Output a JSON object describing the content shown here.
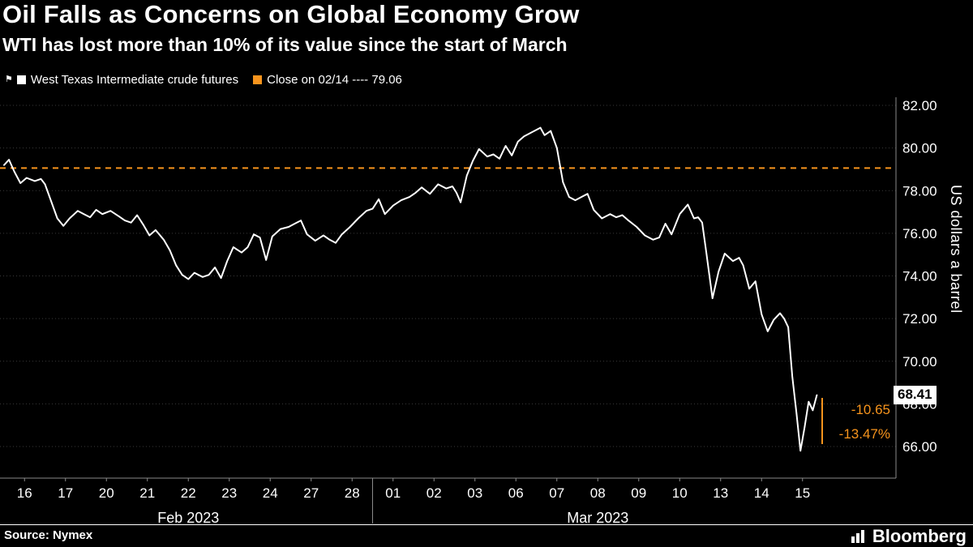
{
  "header": {
    "title": "Oil Falls as Concerns on Global Economy Grow",
    "subtitle": "WTI has lost more than 10% of its value since the start of March"
  },
  "legend": {
    "series_label": "West Texas Intermediate crude futures",
    "reference_label": "Close on 02/14 ---- 79.06"
  },
  "axis": {
    "ylabel": "US dollars a barrel"
  },
  "annotations": {
    "last_price": "68.41",
    "net_change": "-10.65",
    "pct_change": "-13.47%"
  },
  "footer": {
    "source": "Source: Nymex",
    "brand": "Bloomberg"
  },
  "colors": {
    "background": "#000000",
    "price_line": "#ffffff",
    "reference_line": "#f7941d",
    "annotation": "#f7941d",
    "grid": "#3a3a3a",
    "axis": "#8a8a8a",
    "text": "#ffffff"
  },
  "chart_data": {
    "type": "line",
    "title": "West Texas Intermediate crude futures",
    "ylabel": "US dollars a barrel",
    "ylim": [
      66,
      82
    ],
    "yticks": [
      66,
      68,
      70,
      72,
      74,
      76,
      78,
      80,
      82
    ],
    "x_unit": "trading days (Feb 16 - Mar 15, 2023)",
    "x_tick_labels": [
      "16",
      "17",
      "20",
      "21",
      "22",
      "23",
      "24",
      "27",
      "28",
      "01",
      "02",
      "03",
      "06",
      "07",
      "08",
      "09",
      "10",
      "13",
      "14",
      "15"
    ],
    "month_groups": [
      {
        "label": "Feb 2023",
        "start_day": 0,
        "end_day": 9
      },
      {
        "label": "Mar 2023",
        "start_day": 9,
        "end_day": 20
      }
    ],
    "reference_line": {
      "label": "Close on 02/14",
      "value": 79.06
    },
    "last_price": 68.41,
    "net_change": -10.65,
    "pct_change": -13.47,
    "series": [
      {
        "name": "West Texas Intermediate crude futures",
        "points": [
          [
            0.0,
            79.2
          ],
          [
            0.12,
            79.45
          ],
          [
            0.25,
            78.9
          ],
          [
            0.4,
            78.35
          ],
          [
            0.55,
            78.6
          ],
          [
            0.75,
            78.45
          ],
          [
            0.9,
            78.55
          ],
          [
            1.0,
            78.3
          ],
          [
            1.15,
            77.5
          ],
          [
            1.3,
            76.7
          ],
          [
            1.45,
            76.35
          ],
          [
            1.6,
            76.7
          ],
          [
            1.8,
            77.05
          ],
          [
            1.95,
            76.9
          ],
          [
            2.1,
            76.75
          ],
          [
            2.25,
            77.1
          ],
          [
            2.4,
            76.9
          ],
          [
            2.6,
            77.05
          ],
          [
            2.8,
            76.8
          ],
          [
            2.95,
            76.6
          ],
          [
            3.1,
            76.5
          ],
          [
            3.25,
            76.85
          ],
          [
            3.4,
            76.4
          ],
          [
            3.55,
            75.9
          ],
          [
            3.7,
            76.15
          ],
          [
            3.9,
            75.7
          ],
          [
            4.05,
            75.2
          ],
          [
            4.2,
            74.5
          ],
          [
            4.35,
            74.05
          ],
          [
            4.5,
            73.85
          ],
          [
            4.65,
            74.15
          ],
          [
            4.85,
            73.95
          ],
          [
            5.0,
            74.05
          ],
          [
            5.15,
            74.4
          ],
          [
            5.3,
            73.9
          ],
          [
            5.45,
            74.7
          ],
          [
            5.6,
            75.35
          ],
          [
            5.8,
            75.1
          ],
          [
            5.95,
            75.35
          ],
          [
            6.1,
            75.95
          ],
          [
            6.25,
            75.8
          ],
          [
            6.4,
            74.75
          ],
          [
            6.55,
            75.85
          ],
          [
            6.75,
            76.2
          ],
          [
            6.95,
            76.3
          ],
          [
            7.1,
            76.45
          ],
          [
            7.25,
            76.6
          ],
          [
            7.4,
            75.95
          ],
          [
            7.6,
            75.65
          ],
          [
            7.8,
            75.9
          ],
          [
            7.95,
            75.7
          ],
          [
            8.1,
            75.55
          ],
          [
            8.25,
            75.95
          ],
          [
            8.45,
            76.3
          ],
          [
            8.65,
            76.7
          ],
          [
            8.85,
            77.05
          ],
          [
            9.0,
            77.15
          ],
          [
            9.15,
            77.6
          ],
          [
            9.3,
            76.9
          ],
          [
            9.5,
            77.3
          ],
          [
            9.7,
            77.55
          ],
          [
            9.9,
            77.7
          ],
          [
            10.05,
            77.9
          ],
          [
            10.2,
            78.15
          ],
          [
            10.4,
            77.85
          ],
          [
            10.6,
            78.3
          ],
          [
            10.8,
            78.1
          ],
          [
            10.95,
            78.2
          ],
          [
            11.05,
            77.9
          ],
          [
            11.15,
            77.45
          ],
          [
            11.3,
            78.7
          ],
          [
            11.45,
            79.4
          ],
          [
            11.6,
            79.95
          ],
          [
            11.8,
            79.6
          ],
          [
            11.95,
            79.7
          ],
          [
            12.1,
            79.5
          ],
          [
            12.25,
            80.1
          ],
          [
            12.4,
            79.65
          ],
          [
            12.55,
            80.3
          ],
          [
            12.7,
            80.55
          ],
          [
            12.9,
            80.75
          ],
          [
            13.0,
            80.85
          ],
          [
            13.1,
            80.95
          ],
          [
            13.2,
            80.6
          ],
          [
            13.35,
            80.8
          ],
          [
            13.5,
            80.0
          ],
          [
            13.65,
            78.4
          ],
          [
            13.8,
            77.7
          ],
          [
            13.95,
            77.55
          ],
          [
            14.1,
            77.7
          ],
          [
            14.25,
            77.85
          ],
          [
            14.4,
            77.1
          ],
          [
            14.6,
            76.7
          ],
          [
            14.8,
            76.9
          ],
          [
            14.95,
            76.75
          ],
          [
            15.1,
            76.85
          ],
          [
            15.25,
            76.6
          ],
          [
            15.45,
            76.3
          ],
          [
            15.65,
            75.9
          ],
          [
            15.85,
            75.7
          ],
          [
            16.0,
            75.8
          ],
          [
            16.15,
            76.45
          ],
          [
            16.3,
            75.95
          ],
          [
            16.5,
            76.9
          ],
          [
            16.7,
            77.35
          ],
          [
            16.85,
            76.7
          ],
          [
            16.95,
            76.75
          ],
          [
            17.05,
            76.5
          ],
          [
            17.15,
            75.1
          ],
          [
            17.3,
            72.95
          ],
          [
            17.45,
            74.2
          ],
          [
            17.6,
            75.05
          ],
          [
            17.8,
            74.7
          ],
          [
            17.95,
            74.85
          ],
          [
            18.05,
            74.5
          ],
          [
            18.2,
            73.4
          ],
          [
            18.35,
            73.75
          ],
          [
            18.5,
            72.2
          ],
          [
            18.65,
            71.4
          ],
          [
            18.8,
            71.95
          ],
          [
            18.95,
            72.25
          ],
          [
            19.05,
            72.0
          ],
          [
            19.15,
            71.6
          ],
          [
            19.25,
            69.3
          ],
          [
            19.35,
            67.6
          ],
          [
            19.45,
            65.8
          ],
          [
            19.55,
            66.9
          ],
          [
            19.65,
            68.1
          ],
          [
            19.75,
            67.7
          ],
          [
            19.85,
            68.41
          ]
        ]
      }
    ]
  }
}
